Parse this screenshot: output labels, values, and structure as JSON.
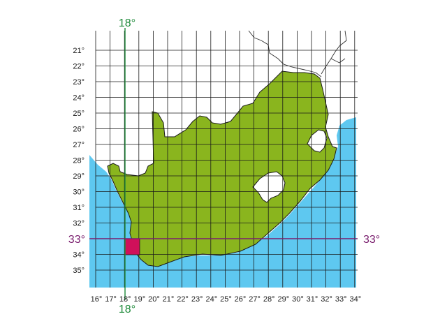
{
  "map": {
    "latitude_labels": [
      "21°",
      "22°",
      "23°",
      "24°",
      "25°",
      "26°",
      "27°",
      "28°",
      "29°",
      "30°",
      "31°",
      "32°",
      "33°",
      "34°",
      "35°"
    ],
    "longitude_labels": [
      "16°",
      "17°",
      "18°",
      "19°",
      "20°",
      "21°",
      "22°",
      "23°",
      "24°",
      "25°",
      "26°",
      "27°",
      "28°",
      "29°",
      "30°",
      "31°",
      "32°",
      "33°",
      "34°"
    ],
    "meridian_highlight": {
      "label_top": "18°",
      "label_bottom": "18°",
      "color": "#1e8a3a"
    },
    "parallel_highlight": {
      "label_left": "33°",
      "label_right": "33°",
      "color": "#7a1e6e"
    },
    "highlighted_cell_color": "#d0105a",
    "colors": {
      "ocean": "#5ec8f0",
      "land": "#8ab51e",
      "coast": "#1a1a1a",
      "grid": "#1a1a1a",
      "borders": "#333333"
    }
  }
}
